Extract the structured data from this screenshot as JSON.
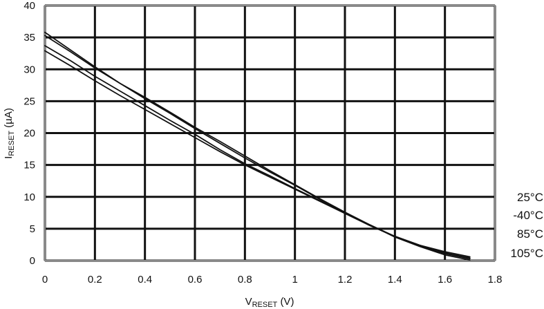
{
  "chart_data": {
    "type": "line",
    "xlabel": {
      "main": "V",
      "sub": "RESET",
      "unit": "(V)"
    },
    "ylabel": {
      "main": "I",
      "sub": "RESET",
      "unit": "(µA)"
    },
    "xlim": [
      0,
      1.8
    ],
    "ylim": [
      0,
      40
    ],
    "xticks": [
      0,
      0.2,
      0.4,
      0.6,
      0.8,
      1,
      1.2,
      1.4,
      1.6,
      1.8
    ],
    "xtick_labels": [
      "0",
      "0.2",
      "0.4",
      "0.6",
      "0.8",
      "1",
      "1.2",
      "1.4",
      "1.6",
      "1.8"
    ],
    "yticks": [
      0,
      5,
      10,
      15,
      20,
      25,
      30,
      35,
      40
    ],
    "ytick_labels": [
      "0",
      "5",
      "10",
      "15",
      "20",
      "25",
      "30",
      "35",
      "40"
    ],
    "grid": true,
    "legend_position": "right-bottom",
    "line_color": "#111111",
    "grid_color": "#111111",
    "frame_color": "#8a8a8a",
    "series": [
      {
        "name": "25°C",
        "x": [
          0,
          0.1,
          0.2,
          0.3,
          0.4,
          0.5,
          0.6,
          0.7,
          0.8,
          0.9,
          1.0,
          1.1,
          1.2,
          1.3,
          1.4,
          1.5,
          1.6,
          1.7
        ],
        "y": [
          35.8,
          33.1,
          30.4,
          27.8,
          25.4,
          23.1,
          20.7,
          18.4,
          16.1,
          13.9,
          11.8,
          9.6,
          7.5,
          5.5,
          3.8,
          2.4,
          1.4,
          0.6
        ]
      },
      {
        "name": "-40°C",
        "x": [
          0,
          0.1,
          0.2,
          0.3,
          0.4,
          0.5,
          0.6,
          0.7,
          0.8,
          0.9,
          1.0,
          1.1,
          1.2,
          1.3,
          1.4,
          1.5,
          1.6,
          1.7
        ],
        "y": [
          35.3,
          32.8,
          30.2,
          27.8,
          25.6,
          23.3,
          20.9,
          18.7,
          16.4,
          14.1,
          11.9,
          9.7,
          7.6,
          5.6,
          3.7,
          2.2,
          0.9,
          0.1
        ]
      },
      {
        "name": "85°C",
        "x": [
          0,
          0.1,
          0.2,
          0.3,
          0.4,
          0.5,
          0.6,
          0.7,
          0.8,
          0.9,
          1.0,
          1.1,
          1.2,
          1.3,
          1.4,
          1.5,
          1.6,
          1.7
        ],
        "y": [
          33.7,
          31.4,
          28.9,
          26.6,
          24.3,
          22.0,
          19.8,
          17.4,
          15.2,
          13.3,
          11.3,
          9.4,
          7.4,
          5.6,
          3.8,
          2.3,
          1.1,
          0.3
        ]
      },
      {
        "name": "105°C",
        "x": [
          0,
          0.1,
          0.2,
          0.3,
          0.4,
          0.5,
          0.6,
          0.7,
          0.8,
          0.9,
          1.0,
          1.1,
          1.2,
          1.3,
          1.4,
          1.5,
          1.6,
          1.7
        ],
        "y": [
          32.9,
          30.6,
          28.2,
          25.9,
          23.7,
          21.5,
          19.3,
          17.1,
          15.0,
          13.1,
          11.2,
          9.3,
          7.4,
          5.5,
          3.8,
          2.4,
          1.2,
          0.4
        ]
      }
    ]
  }
}
